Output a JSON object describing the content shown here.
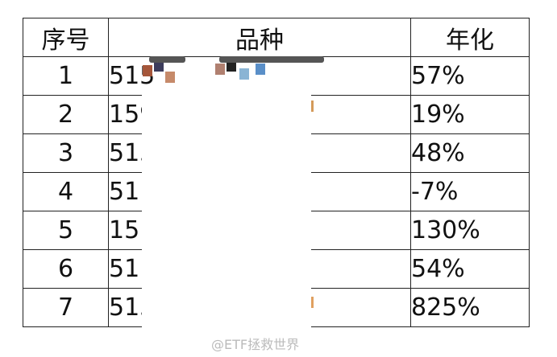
{
  "table": {
    "headers": [
      "序号",
      "品种",
      "年化"
    ],
    "rows": [
      {
        "no": "1",
        "name": "515",
        "annual": "57%"
      },
      {
        "no": "2",
        "name": "159",
        "annual": "19%"
      },
      {
        "no": "3",
        "name": "513",
        "annual": "48%"
      },
      {
        "no": "4",
        "name": "51",
        "annual": "-7%"
      },
      {
        "no": "5",
        "name": "15",
        "annual": "130%"
      },
      {
        "no": "6",
        "name": "51",
        "annual": "54%"
      },
      {
        "no": "7",
        "name": "513",
        "annual": "825%"
      }
    ]
  },
  "watermark": "@ETF拯救世界",
  "colors": {
    "border": "#222222",
    "mask": "#ffffff",
    "watermark": "#bbbbbb"
  }
}
